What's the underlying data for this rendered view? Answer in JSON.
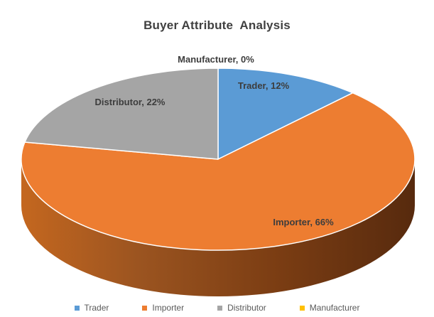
{
  "chart_data": {
    "type": "pie",
    "title": "Buyer Attribute  Analysis",
    "categories": [
      "Trader",
      "Importer",
      "Distributor",
      "Manufacturer"
    ],
    "values": [
      12,
      66,
      22,
      0
    ],
    "unit": "%",
    "colors": {
      "Trader": "#5B9BD5",
      "Importer": "#ED7D31",
      "Distributor": "#A5A5A5",
      "Manufacturer": "#FFC000"
    },
    "style": "3d-pie",
    "start_angle_deg": 0,
    "direction": "clockwise",
    "legend_position": "bottom",
    "data_labels": [
      "Trader, 12%",
      "Importer, 66%",
      "Distributor, 22%",
      "Manufacturer, 0%"
    ]
  },
  "title": "Buyer Attribute  Analysis",
  "slice_labels": {
    "manufacturer": "Manufacturer, 0%",
    "trader": "Trader, 12%",
    "distributor": "Distributor, 22%",
    "importer": "Importer, 66%"
  },
  "legend": {
    "items": [
      {
        "label": "Trader",
        "color": "#5B9BD5"
      },
      {
        "label": "Importer",
        "color": "#ED7D31"
      },
      {
        "label": "Distributor",
        "color": "#A5A5A5"
      },
      {
        "label": "Manufacturer",
        "color": "#FFC000"
      }
    ]
  }
}
